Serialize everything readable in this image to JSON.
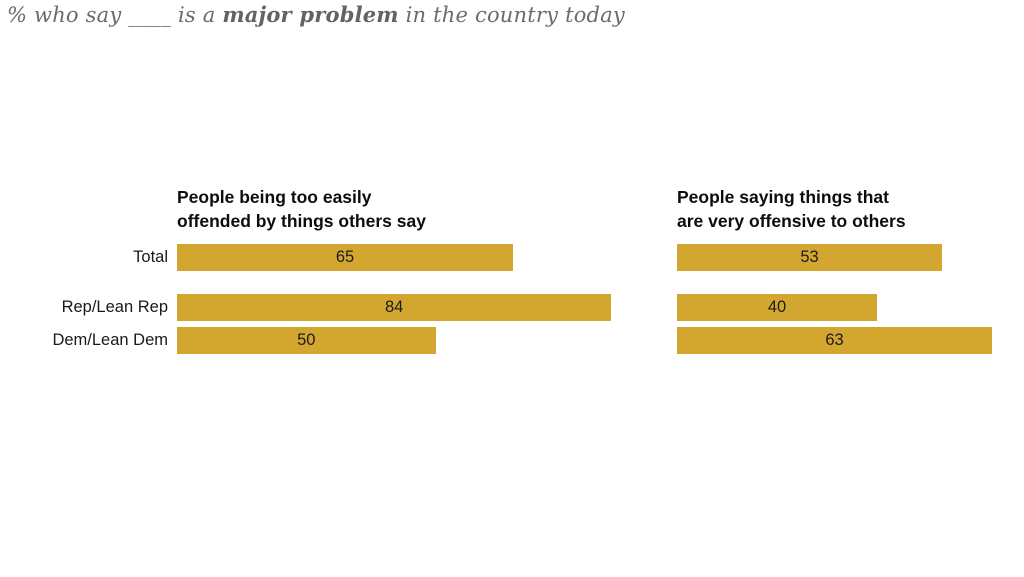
{
  "title": {
    "seg1": "% who say ____ is a ",
    "bold": "major problem",
    "seg2": " in the country today"
  },
  "colors": {
    "bar": "#d3a72f",
    "title_text": "#6b6b6b",
    "header_text": "#0d0d0d",
    "label_text": "#1a1a1a"
  },
  "chart_data": [
    {
      "type": "bar",
      "orientation": "horizontal",
      "title": "People being too easily offended by things others say",
      "title_lines": [
        "People being too easily",
        "offended by things others say"
      ],
      "categories": [
        "Total",
        "Rep/Lean Rep",
        "Dem/Lean Dem"
      ],
      "values": [
        65,
        84,
        50
      ],
      "xlim": [
        0,
        100
      ],
      "grid": false,
      "legend": "none",
      "value_labels": "inside-center",
      "bar_color": "#d3a72f"
    },
    {
      "type": "bar",
      "orientation": "horizontal",
      "title": "People saying things that are very offensive to others",
      "title_lines": [
        "People saying things that",
        "are very offensive to others"
      ],
      "categories": [
        "Total",
        "Rep/Lean Rep",
        "Dem/Lean Dem"
      ],
      "values": [
        53,
        40,
        63
      ],
      "xlim": [
        0,
        100
      ],
      "grid": false,
      "legend": "none",
      "value_labels": "inside-center",
      "bar_color": "#d3a72f"
    }
  ]
}
